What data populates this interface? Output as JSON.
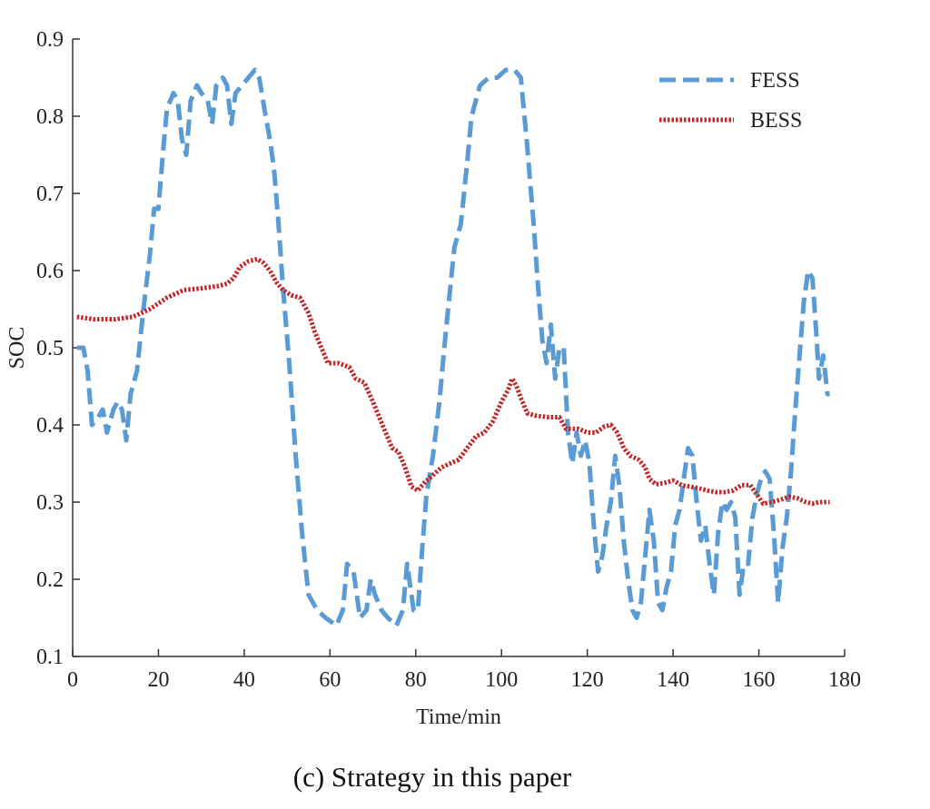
{
  "caption": "(c) Strategy in this paper",
  "colors": {
    "fess": "#5b9bd5",
    "bess": "#c0282a",
    "axis": "#333333"
  },
  "chart_data": {
    "type": "line",
    "title": "",
    "xlabel": "Time/min",
    "ylabel": "SOC",
    "xlim": [
      0,
      180
    ],
    "ylim": [
      0.1,
      0.9
    ],
    "xticks": [
      0,
      20,
      40,
      60,
      80,
      100,
      120,
      140,
      160,
      180
    ],
    "yticks": [
      0.1,
      0.2,
      0.3,
      0.4,
      0.5,
      0.6,
      0.7,
      0.8,
      0.9
    ],
    "xtick_labels": [
      "0",
      "20",
      "40",
      "60",
      "80",
      "100",
      "120",
      "140",
      "160",
      "180"
    ],
    "ytick_labels": [
      "0.1",
      "0.2",
      "0.3",
      "0.4",
      "0.5",
      "0.6",
      "0.7",
      "0.8",
      "0.9"
    ],
    "grid": false,
    "legend_position": "top-right",
    "series": [
      {
        "name": "FESS",
        "style": "dashed",
        "color": "#5b9bd5",
        "points": [
          [
            1,
            0.5
          ],
          [
            2.5,
            0.5
          ],
          [
            3.5,
            0.47
          ],
          [
            4.5,
            0.4
          ],
          [
            6,
            0.41
          ],
          [
            7,
            0.42
          ],
          [
            8,
            0.39
          ],
          [
            9.5,
            0.42
          ],
          [
            10.5,
            0.43
          ],
          [
            11.5,
            0.42
          ],
          [
            12.5,
            0.38
          ],
          [
            13.5,
            0.44
          ],
          [
            15,
            0.47
          ],
          [
            16.5,
            0.55
          ],
          [
            18,
            0.62
          ],
          [
            19,
            0.68
          ],
          [
            20,
            0.68
          ],
          [
            21,
            0.75
          ],
          [
            22,
            0.81
          ],
          [
            23.5,
            0.83
          ],
          [
            24.5,
            0.82
          ],
          [
            25.5,
            0.77
          ],
          [
            26.5,
            0.75
          ],
          [
            27.5,
            0.82
          ],
          [
            29,
            0.84
          ],
          [
            30,
            0.83
          ],
          [
            31.5,
            0.82
          ],
          [
            32.5,
            0.79
          ],
          [
            33.5,
            0.84
          ],
          [
            35,
            0.85
          ],
          [
            36,
            0.84
          ],
          [
            37,
            0.79
          ],
          [
            38,
            0.83
          ],
          [
            39.5,
            0.84
          ],
          [
            41,
            0.85
          ],
          [
            42.5,
            0.86
          ],
          [
            43.5,
            0.85
          ],
          [
            45,
            0.8
          ],
          [
            46,
            0.77
          ],
          [
            47,
            0.73
          ],
          [
            48,
            0.66
          ],
          [
            49,
            0.58
          ],
          [
            50.5,
            0.48
          ],
          [
            52,
            0.36
          ],
          [
            53.5,
            0.26
          ],
          [
            55,
            0.18
          ],
          [
            57,
            0.16
          ],
          [
            59,
            0.15
          ],
          [
            61.5,
            0.14
          ],
          [
            63,
            0.16
          ],
          [
            64,
            0.22
          ],
          [
            65.5,
            0.21
          ],
          [
            67,
            0.15
          ],
          [
            68.5,
            0.16
          ],
          [
            69.5,
            0.2
          ],
          [
            70.5,
            0.18
          ],
          [
            72,
            0.16
          ],
          [
            73.5,
            0.15
          ],
          [
            75.5,
            0.14
          ],
          [
            77,
            0.16
          ],
          [
            78,
            0.22
          ],
          [
            79.5,
            0.16
          ],
          [
            80.5,
            0.16
          ],
          [
            81.5,
            0.24
          ],
          [
            82.5,
            0.31
          ],
          [
            84,
            0.36
          ],
          [
            85.5,
            0.43
          ],
          [
            87,
            0.52
          ],
          [
            89,
            0.63
          ],
          [
            90.5,
            0.66
          ],
          [
            92,
            0.74
          ],
          [
            93,
            0.8
          ],
          [
            95,
            0.84
          ],
          [
            97,
            0.85
          ],
          [
            99,
            0.85
          ],
          [
            101,
            0.86
          ],
          [
            103,
            0.86
          ],
          [
            104.5,
            0.85
          ],
          [
            106,
            0.76
          ],
          [
            107.5,
            0.66
          ],
          [
            108.5,
            0.58
          ],
          [
            109.5,
            0.51
          ],
          [
            110.5,
            0.48
          ],
          [
            111.5,
            0.53
          ],
          [
            112.5,
            0.46
          ],
          [
            113.5,
            0.5
          ],
          [
            114.5,
            0.5
          ],
          [
            115.5,
            0.39
          ],
          [
            116.5,
            0.35
          ],
          [
            117.5,
            0.39
          ],
          [
            118.5,
            0.36
          ],
          [
            119.5,
            0.38
          ],
          [
            120.5,
            0.35
          ],
          [
            121.5,
            0.27
          ],
          [
            122.5,
            0.21
          ],
          [
            123.5,
            0.23
          ],
          [
            124.5,
            0.27
          ],
          [
            125.5,
            0.3
          ],
          [
            126.5,
            0.36
          ],
          [
            127.5,
            0.32
          ],
          [
            128.5,
            0.25
          ],
          [
            129.5,
            0.2
          ],
          [
            130.5,
            0.16
          ],
          [
            131.5,
            0.15
          ],
          [
            132.5,
            0.17
          ],
          [
            133.5,
            0.23
          ],
          [
            134.5,
            0.29
          ],
          [
            135.5,
            0.25
          ],
          [
            136.5,
            0.17
          ],
          [
            137.5,
            0.16
          ],
          [
            138.5,
            0.19
          ],
          [
            139.5,
            0.21
          ],
          [
            140.5,
            0.27
          ],
          [
            141.5,
            0.29
          ],
          [
            142.5,
            0.33
          ],
          [
            143.5,
            0.37
          ],
          [
            144.5,
            0.36
          ],
          [
            145.5,
            0.3
          ],
          [
            146.5,
            0.25
          ],
          [
            147.5,
            0.27
          ],
          [
            148.5,
            0.22
          ],
          [
            149.5,
            0.18
          ],
          [
            150.5,
            0.26
          ],
          [
            151.5,
            0.3
          ],
          [
            152.5,
            0.29
          ],
          [
            153.5,
            0.3
          ],
          [
            154.5,
            0.28
          ],
          [
            155.5,
            0.18
          ],
          [
            156.5,
            0.22
          ],
          [
            157.5,
            0.22
          ],
          [
            158.5,
            0.28
          ],
          [
            159.5,
            0.31
          ],
          [
            160.5,
            0.33
          ],
          [
            161.5,
            0.34
          ],
          [
            162.5,
            0.33
          ],
          [
            163.5,
            0.26
          ],
          [
            164.5,
            0.17
          ],
          [
            165.5,
            0.24
          ],
          [
            166.5,
            0.28
          ],
          [
            167.5,
            0.34
          ],
          [
            168.5,
            0.42
          ],
          [
            169.5,
            0.49
          ],
          [
            170.5,
            0.56
          ],
          [
            171.5,
            0.6
          ],
          [
            172.5,
            0.59
          ],
          [
            173.5,
            0.51
          ],
          [
            174,
            0.46
          ],
          [
            175,
            0.49
          ],
          [
            176,
            0.44
          ],
          [
            176.5,
            0.44
          ]
        ]
      },
      {
        "name": "BESS",
        "style": "dotted",
        "color": "#c0282a",
        "points": [
          [
            1,
            0.54
          ],
          [
            5,
            0.537
          ],
          [
            10,
            0.537
          ],
          [
            14,
            0.54
          ],
          [
            18,
            0.55
          ],
          [
            22,
            0.565
          ],
          [
            26,
            0.575
          ],
          [
            30,
            0.577
          ],
          [
            34,
            0.58
          ],
          [
            36,
            0.583
          ],
          [
            37.5,
            0.59
          ],
          [
            39,
            0.605
          ],
          [
            41,
            0.612
          ],
          [
            43,
            0.615
          ],
          [
            44.5,
            0.61
          ],
          [
            46,
            0.6
          ],
          [
            47.5,
            0.585
          ],
          [
            49,
            0.575
          ],
          [
            51,
            0.568
          ],
          [
            53,
            0.565
          ],
          [
            55,
            0.545
          ],
          [
            56.5,
            0.52
          ],
          [
            58,
            0.5
          ],
          [
            59.5,
            0.48
          ],
          [
            62,
            0.48
          ],
          [
            64.5,
            0.475
          ],
          [
            66,
            0.46
          ],
          [
            68,
            0.455
          ],
          [
            70,
            0.43
          ],
          [
            71.5,
            0.41
          ],
          [
            73,
            0.39
          ],
          [
            74.5,
            0.37
          ],
          [
            76,
            0.365
          ],
          [
            77.5,
            0.345
          ],
          [
            79,
            0.32
          ],
          [
            80.5,
            0.315
          ],
          [
            82,
            0.325
          ],
          [
            84,
            0.335
          ],
          [
            86,
            0.345
          ],
          [
            88,
            0.35
          ],
          [
            90,
            0.355
          ],
          [
            92,
            0.37
          ],
          [
            94,
            0.385
          ],
          [
            96,
            0.39
          ],
          [
            98,
            0.405
          ],
          [
            100,
            0.43
          ],
          [
            101.5,
            0.445
          ],
          [
            102.5,
            0.46
          ],
          [
            103.5,
            0.45
          ],
          [
            104.5,
            0.435
          ],
          [
            106,
            0.415
          ],
          [
            108,
            0.412
          ],
          [
            111,
            0.41
          ],
          [
            113.5,
            0.41
          ],
          [
            115,
            0.395
          ],
          [
            118,
            0.395
          ],
          [
            120,
            0.39
          ],
          [
            122,
            0.39
          ],
          [
            124,
            0.398
          ],
          [
            125.5,
            0.4
          ],
          [
            127,
            0.39
          ],
          [
            128.5,
            0.37
          ],
          [
            130,
            0.36
          ],
          [
            132,
            0.355
          ],
          [
            133.5,
            0.345
          ],
          [
            134.5,
            0.33
          ],
          [
            136,
            0.323
          ],
          [
            138,
            0.325
          ],
          [
            140,
            0.328
          ],
          [
            142,
            0.322
          ],
          [
            144,
            0.32
          ],
          [
            146,
            0.318
          ],
          [
            148,
            0.315
          ],
          [
            150,
            0.313
          ],
          [
            152,
            0.313
          ],
          [
            154,
            0.315
          ],
          [
            156,
            0.322
          ],
          [
            158,
            0.322
          ],
          [
            159.5,
            0.31
          ],
          [
            161,
            0.298
          ],
          [
            163,
            0.3
          ],
          [
            165,
            0.303
          ],
          [
            167,
            0.307
          ],
          [
            169,
            0.305
          ],
          [
            171,
            0.3
          ],
          [
            172.5,
            0.298
          ],
          [
            174,
            0.3
          ],
          [
            176.5,
            0.3
          ]
        ]
      }
    ]
  }
}
